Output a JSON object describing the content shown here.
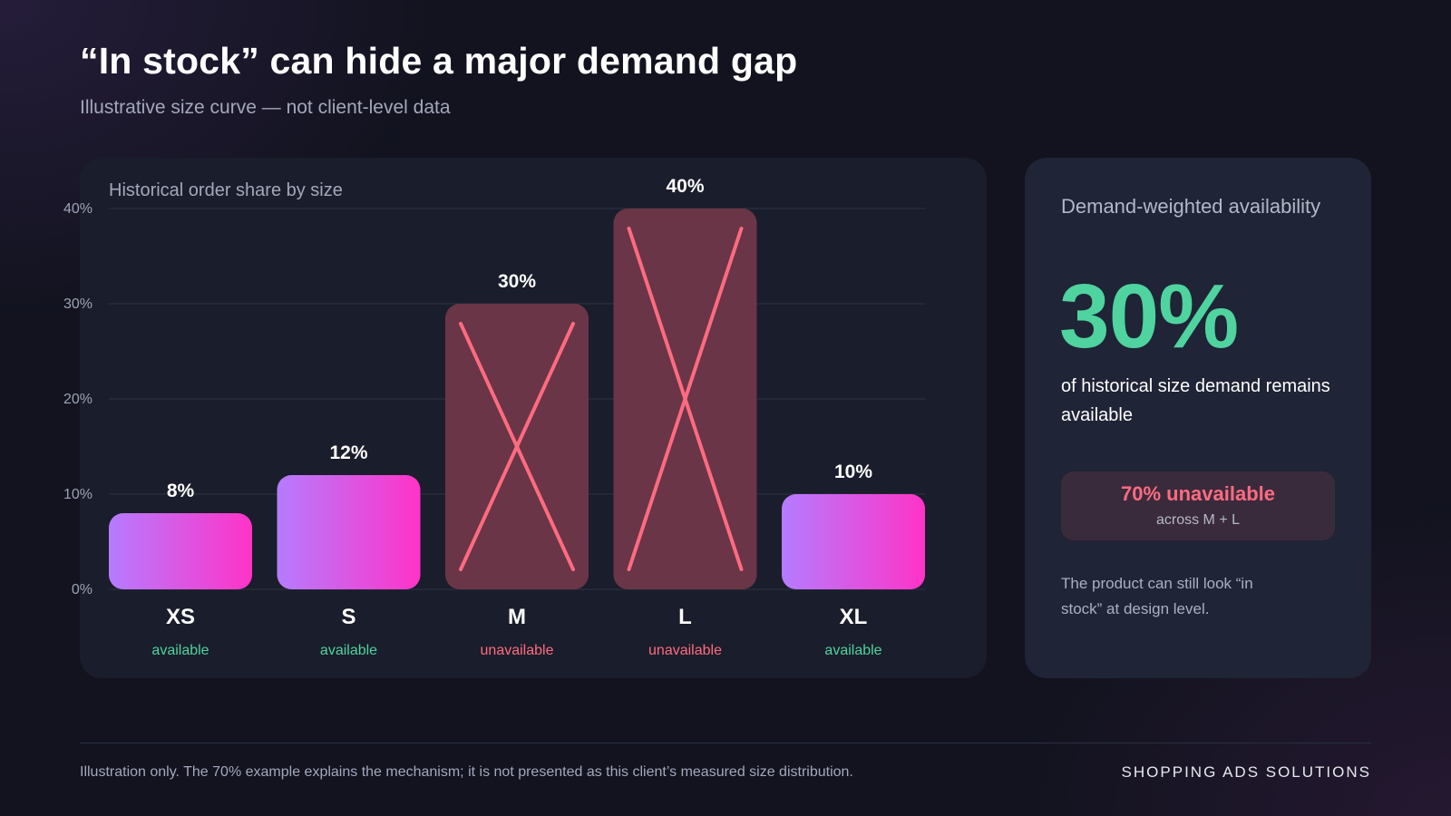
{
  "slide": {
    "title": "“In stock” can hide a major demand gap",
    "subtitle": "Illustrative size curve — not client-level data"
  },
  "chart_data": {
    "type": "bar",
    "title": "Historical order share by size",
    "categories": [
      "XS",
      "S",
      "M",
      "L",
      "XL"
    ],
    "values": [
      8,
      12,
      30,
      40,
      10
    ],
    "value_labels": [
      "8%",
      "12%",
      "30%",
      "40%",
      "10%"
    ],
    "status": [
      "available",
      "available",
      "unavailable",
      "unavailable",
      "available"
    ],
    "y_ticks": [
      0,
      10,
      20,
      30,
      40
    ],
    "y_tick_labels": [
      "0%",
      "10%",
      "20%",
      "30%",
      "40%"
    ],
    "ylim": [
      0,
      40
    ],
    "grid": true,
    "unavailable_marker": "crossed-out",
    "colors": {
      "available_gradient_start": "#b57cff",
      "available_gradient_end": "#ff33c7",
      "unavailable_fill": "#6a3546",
      "unavailable_cross": "#ff6b81",
      "available_text": "#4fd39f",
      "unavailable_text": "#ff6b81",
      "grid": "#2e3243",
      "tick_text": "#9da2b5"
    }
  },
  "side_panel": {
    "heading": "Demand-weighted availability",
    "big_value": "30%",
    "description": "of historical size demand remains available",
    "badge_main": "70% unavailable",
    "badge_sub": "across M + L",
    "note": "The product can still look “in stock” at design level.",
    "accent_color": "#4fd39f"
  },
  "footer": {
    "note": "Illustration only. The 70% example explains the mechanism; it is not presented as this client’s measured size distribution.",
    "brand": "SHOPPING ADS SOLUTIONS"
  }
}
